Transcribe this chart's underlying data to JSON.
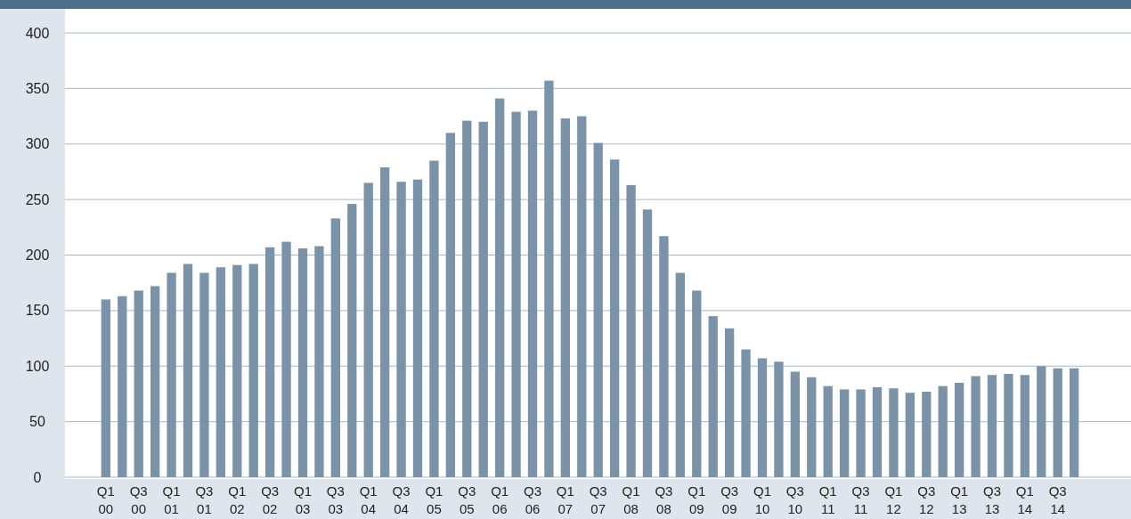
{
  "chart_data": {
    "type": "bar",
    "categories": [
      "Q1\n00",
      null,
      "Q3\n00",
      null,
      "Q1\n01",
      null,
      "Q3\n01",
      null,
      "Q1\n02",
      null,
      "Q3\n02",
      null,
      "Q1\n03",
      null,
      "Q3\n03",
      null,
      "Q1\n04",
      null,
      "Q3\n04",
      null,
      "Q1\n05",
      null,
      "Q3\n05",
      null,
      "Q1\n06",
      null,
      "Q3\n06",
      null,
      "Q1\n07",
      null,
      "Q3\n07",
      null,
      "Q1\n08",
      null,
      "Q3\n08",
      null,
      "Q1\n09",
      null,
      "Q3\n09",
      null,
      "Q1\n10",
      null,
      "Q3\n10",
      null,
      "Q1\n11",
      null,
      "Q3\n11",
      null,
      "Q1\n12",
      null,
      "Q3\n12",
      null,
      "Q1\n13",
      null,
      "Q3\n13",
      null,
      "Q1\n14",
      null,
      "Q3\n14",
      null
    ],
    "values": [
      160,
      163,
      168,
      172,
      184,
      192,
      184,
      189,
      191,
      192,
      207,
      212,
      206,
      208,
      233,
      246,
      265,
      279,
      266,
      268,
      285,
      310,
      321,
      320,
      341,
      329,
      330,
      357,
      323,
      325,
      301,
      286,
      263,
      241,
      217,
      184,
      168,
      145,
      134,
      115,
      107,
      104,
      95,
      90,
      82,
      79,
      79,
      81,
      80,
      76,
      77,
      82,
      85,
      91,
      92,
      93,
      92,
      100,
      98,
      98
    ],
    "color": "#7b93a8",
    "ylim": [
      0,
      400
    ],
    "yticks": [
      0,
      50,
      100,
      150,
      200,
      250,
      300,
      350,
      400
    ],
    "grid": "y"
  }
}
